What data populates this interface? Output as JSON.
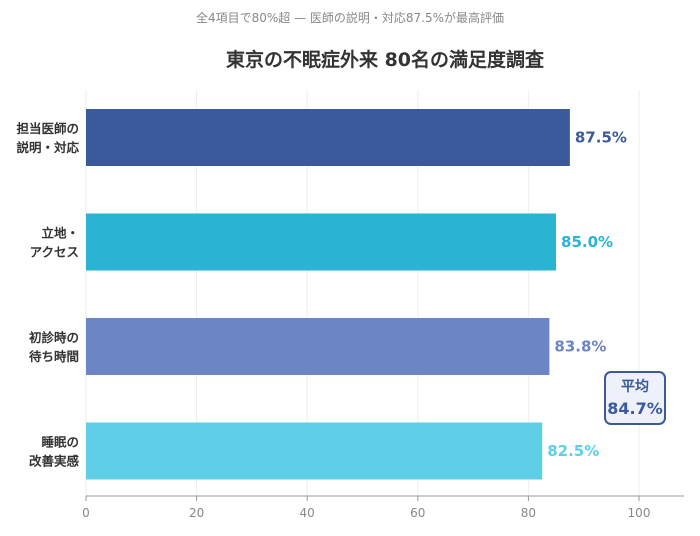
{
  "chart_data": {
    "type": "bar",
    "orientation": "horizontal",
    "subtitle": "全4項目で80%超 — 医師の説明・対応87.5%が最高評価",
    "title": "東京の不眠症外来 80名の満足度調査",
    "categories": [
      [
        "担当医師の",
        "説明・対応"
      ],
      [
        "立地・",
        "アクセス"
      ],
      [
        "初診時の",
        "待ち時間"
      ],
      [
        "睡眠の",
        "改善実感"
      ]
    ],
    "values": [
      87.5,
      85.0,
      83.8,
      82.5
    ],
    "value_labels": [
      "87.5%",
      "85.0%",
      "83.8%",
      "82.5%"
    ],
    "colors": [
      "#3a5a9c",
      "#2ab3d2",
      "#6b85c5",
      "#5ecfe6"
    ],
    "xlim": [
      0,
      108
    ],
    "xticks": [
      0,
      20,
      40,
      60,
      80,
      100
    ],
    "xtick_labels": [
      "0",
      "20",
      "40",
      "60",
      "80",
      "100"
    ],
    "grid": true,
    "annotation": {
      "label": "平均",
      "value": "84.7%",
      "color": "#3a5a9c"
    }
  }
}
